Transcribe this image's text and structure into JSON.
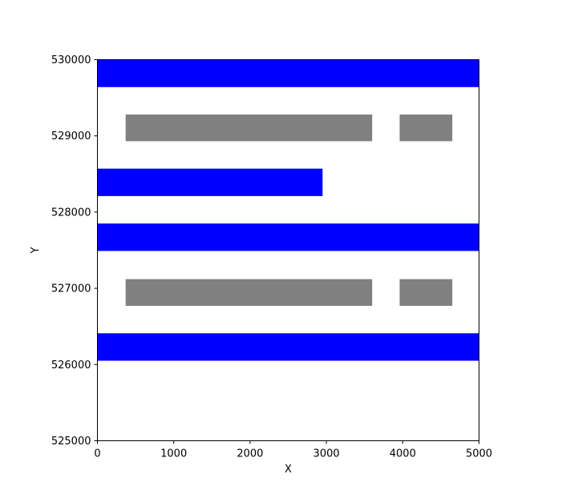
{
  "chart_data": {
    "type": "rectangles",
    "title": "",
    "xlabel": "X",
    "ylabel": "Y",
    "xlim": [
      0,
      5000
    ],
    "ylim": [
      525000,
      530000
    ],
    "xticks": [
      0,
      1000,
      2000,
      3000,
      4000,
      5000
    ],
    "yticks": [
      525000,
      526000,
      527000,
      528000,
      529000,
      530000
    ],
    "grid": false,
    "legend": "none",
    "colors": {
      "blue": "#0000ff",
      "gray": "#808080"
    },
    "rects": [
      {
        "x0": 0,
        "x1": 5000,
        "y0": 529640,
        "y1": 530000,
        "color": "#0000ff"
      },
      {
        "x0": 370,
        "x1": 3600,
        "y0": 528930,
        "y1": 529280,
        "color": "#808080"
      },
      {
        "x0": 3960,
        "x1": 4650,
        "y0": 528930,
        "y1": 529280,
        "color": "#808080"
      },
      {
        "x0": 0,
        "x1": 2950,
        "y0": 528210,
        "y1": 528570,
        "color": "#0000ff"
      },
      {
        "x0": 0,
        "x1": 5000,
        "y0": 527490,
        "y1": 527850,
        "color": "#0000ff"
      },
      {
        "x0": 370,
        "x1": 3600,
        "y0": 526770,
        "y1": 527120,
        "color": "#808080"
      },
      {
        "x0": 3960,
        "x1": 4650,
        "y0": 526770,
        "y1": 527120,
        "color": "#808080"
      },
      {
        "x0": 0,
        "x1": 5000,
        "y0": 526050,
        "y1": 526410,
        "color": "#0000ff"
      }
    ]
  }
}
